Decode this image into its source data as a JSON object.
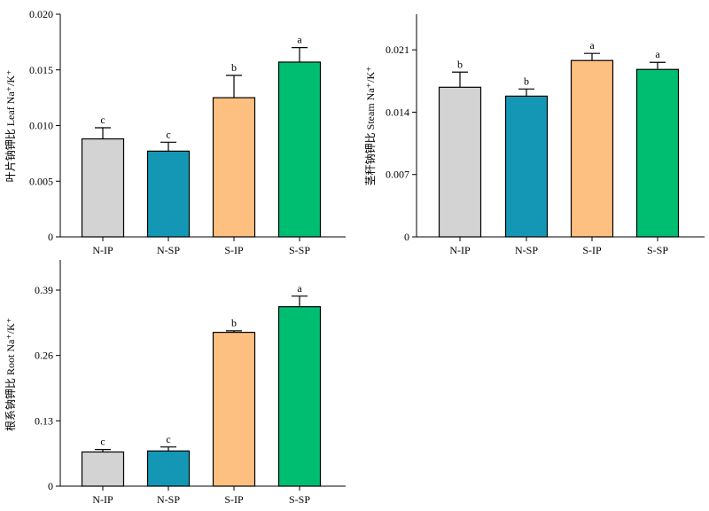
{
  "colors": {
    "N-IP": "#d3d3d3",
    "N-SP": "#1497b4",
    "S-IP": "#fdc081",
    "S-SP": "#00be71",
    "axis": "#000000"
  },
  "chart_data": [
    {
      "type": "bar",
      "ylabel": "叶片钠钾比 Leaf Na⁺/K⁺",
      "categories": [
        "N-IP",
        "N-SP",
        "S-IP",
        "S-SP"
      ],
      "values": [
        0.0088,
        0.0077,
        0.0125,
        0.0157
      ],
      "errors": [
        0.001,
        0.0008,
        0.002,
        0.0013
      ],
      "letters": [
        "c",
        "c",
        "b",
        "a"
      ],
      "ylim": [
        0,
        0.02
      ],
      "yticks": [
        0,
        0.005,
        0.01,
        0.015,
        0.02
      ],
      "ytick_labels": [
        "0",
        "0.005",
        "0.010",
        "0.015",
        "0.020"
      ]
    },
    {
      "type": "bar",
      "ylabel": "茎秆钠钾比 Steam Na⁺/K⁺",
      "categories": [
        "N-IP",
        "N-SP",
        "S-IP",
        "S-SP"
      ],
      "values": [
        0.0168,
        0.0158,
        0.0198,
        0.0188
      ],
      "errors": [
        0.0017,
        0.0008,
        0.0008,
        0.0008
      ],
      "letters": [
        "b",
        "b",
        "a",
        "a"
      ],
      "ylim": [
        0,
        0.025
      ],
      "yticks": [
        0,
        0.007,
        0.014,
        0.021
      ],
      "ytick_labels": [
        "0",
        "0.007",
        "0.014",
        "0.021"
      ]
    },
    {
      "type": "bar",
      "ylabel": "根系钠钾比 Root Na⁺/K⁺",
      "categories": [
        "N-IP",
        "N-SP",
        "S-IP",
        "S-SP"
      ],
      "values": [
        0.068,
        0.07,
        0.306,
        0.357
      ],
      "errors": [
        0.005,
        0.008,
        0.003,
        0.021
      ],
      "letters": [
        "c",
        "c",
        "b",
        "a"
      ],
      "ylim": [
        0,
        0.45
      ],
      "yticks": [
        0,
        0.13,
        0.26,
        0.39
      ],
      "ytick_labels": [
        "0",
        "0.13",
        "0.26",
        "0.39"
      ]
    }
  ]
}
